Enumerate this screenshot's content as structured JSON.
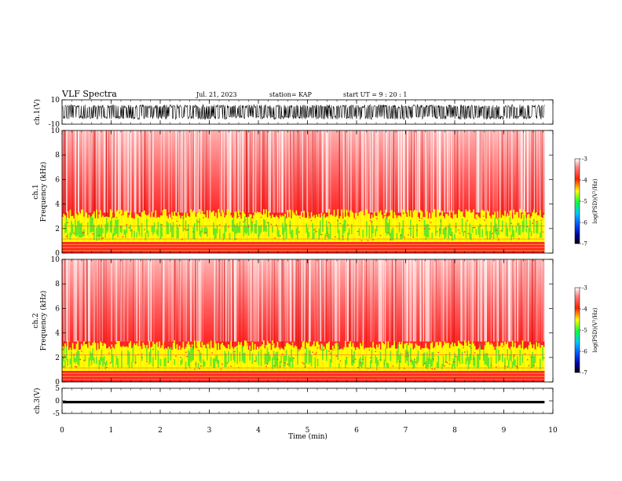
{
  "header": {
    "title": "VLF Spectra",
    "date": "Jul. 21, 2023",
    "station": "station= KAP",
    "start": "start  UT =   9 : 20 : 1"
  },
  "colors": {
    "background": "#ffffff",
    "waveform": "#000000",
    "spec_low": "#ffffff",
    "spec_mid": "#ff2020",
    "spec_yellow": "#ffff00",
    "spec_green": "#30e030"
  },
  "chart_data": [
    {
      "type": "line",
      "ylabel": "ch.1(V)",
      "ylim": [
        -10,
        10
      ],
      "ytick_labels": [
        "10",
        "-10"
      ],
      "xlim": [
        0,
        10
      ],
      "x_extent": [
        0,
        9.83
      ],
      "series": [
        {
          "values": [
            -6,
            6
          ]
        }
      ]
    },
    {
      "type": "heatmap",
      "ylabel": "ch.1\nFrequency (kHz)",
      "ylabel_lines": [
        "ch.1",
        "Frequency (kHz)"
      ],
      "ylim": [
        0,
        10
      ],
      "ytick_labels": [
        "0",
        "2",
        "4",
        "6",
        "8",
        "10"
      ],
      "xlim": [
        0,
        10
      ],
      "x_extent": [
        0,
        9.83
      ],
      "colorbar": {
        "label": "log(PSD)(V²/Hz)",
        "range": [
          -7,
          -3
        ],
        "tick_labels": [
          "-3",
          "-4",
          "-5",
          "-6",
          "-7"
        ]
      },
      "bands": [
        {
          "from_khz": 0.0,
          "to_khz": 0.9,
          "level": "red"
        },
        {
          "from_khz": 0.9,
          "to_khz": 3.2,
          "level": "yellow-green"
        },
        {
          "from_khz": 3.2,
          "to_khz": 5.5,
          "level": "red"
        },
        {
          "from_khz": 5.5,
          "to_khz": 10.0,
          "level": "red-white"
        }
      ]
    },
    {
      "type": "heatmap",
      "ylabel": "ch.2\nFrequency (kHz)",
      "ylabel_lines": [
        "ch.2",
        "Frequency (kHz)"
      ],
      "ylim": [
        0,
        10
      ],
      "ytick_labels": [
        "0",
        "2",
        "4",
        "6",
        "8",
        "10"
      ],
      "xlim": [
        0,
        10
      ],
      "x_extent": [
        0,
        9.83
      ],
      "colorbar": {
        "label": "log(PSD)(V²/Hz)",
        "range": [
          -7,
          -3
        ],
        "tick_labels": [
          "-3",
          "-4",
          "-5",
          "-6",
          "-7"
        ]
      },
      "bands": [
        {
          "from_khz": 0.0,
          "to_khz": 0.9,
          "level": "red"
        },
        {
          "from_khz": 0.9,
          "to_khz": 3.0,
          "level": "yellow-green"
        },
        {
          "from_khz": 3.0,
          "to_khz": 5.5,
          "level": "red"
        },
        {
          "from_khz": 5.5,
          "to_khz": 10.0,
          "level": "red-white"
        }
      ]
    },
    {
      "type": "line",
      "ylabel": "ch.3(V)",
      "ylim": [
        -5,
        5
      ],
      "ytick_labels": [
        "5",
        "0",
        "-5"
      ],
      "xlim": [
        0,
        10
      ],
      "x_extent": [
        0,
        9.83
      ],
      "series": [
        {
          "values": [
            -1,
            0
          ]
        }
      ],
      "xlabel": "Time (min)",
      "xtick_labels": [
        "0",
        "1",
        "2",
        "3",
        "4",
        "5",
        "6",
        "7",
        "8",
        "9",
        "10"
      ]
    }
  ]
}
